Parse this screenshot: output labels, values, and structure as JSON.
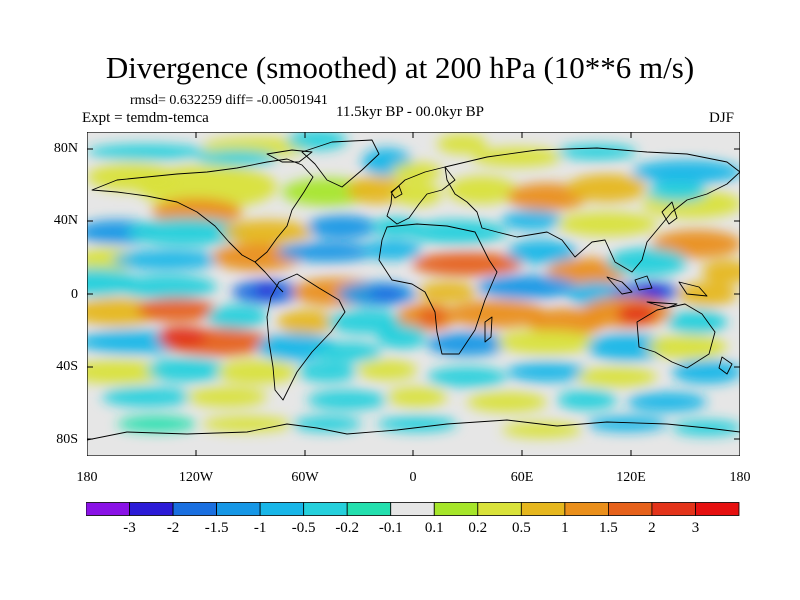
{
  "figure": {
    "title": "Divergence (smoothed) at 200 hPa (10**6 m/s)",
    "stats": "rmsd= 0.632259 diff= -0.00501941",
    "experiment": "Expt = temdm-temca",
    "period": "11.5kyr BP - 00.0kyr BP",
    "season": "DJF"
  },
  "map_axes": {
    "lat_labels": [
      "80N",
      "40N",
      "0",
      "40S",
      "80S"
    ],
    "lon_labels": [
      "180",
      "120W",
      "60W",
      "0",
      "60E",
      "120E",
      "180"
    ]
  },
  "colorbar": {
    "labels": [
      "-3",
      "-2",
      "-1.5",
      "-1",
      "-0.5",
      "-0.2",
      "-0.1",
      "0.1",
      "0.2",
      "0.5",
      "1",
      "1.5",
      "2",
      "3"
    ],
    "colors": [
      "#8a12e6",
      "#2c1bd6",
      "#1a6fe0",
      "#1697e6",
      "#18b6e8",
      "#25d0dc",
      "#23dfae",
      "#e6e6e6",
      "#a6e62a",
      "#d9e23a",
      "#e6b71e",
      "#ea8f1b",
      "#e6611b",
      "#e3331a",
      "#e61010"
    ]
  },
  "colors": {
    "background": "#ffffff",
    "neutral": "#e6e6e6",
    "coast": "#000000"
  }
}
